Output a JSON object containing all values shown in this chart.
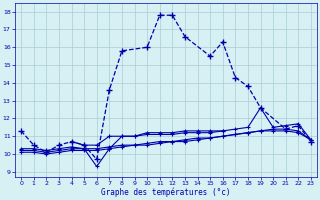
{
  "title": "Graphe des températures (°c)",
  "bg_color": "#d6f0f4",
  "grid_color": "#a8cdd4",
  "line_color": "#0000aa",
  "xlim_min": -0.5,
  "xlim_max": 23.5,
  "ylim_min": 8.7,
  "ylim_max": 18.5,
  "xticks": [
    0,
    1,
    2,
    3,
    4,
    5,
    6,
    7,
    8,
    9,
    10,
    11,
    12,
    13,
    14,
    15,
    16,
    17,
    18,
    19,
    20,
    21,
    22,
    23
  ],
  "yticks": [
    9,
    10,
    11,
    12,
    13,
    14,
    15,
    16,
    17,
    18
  ],
  "series1_x": [
    0,
    1,
    2,
    3,
    4,
    5,
    6,
    7,
    8,
    10,
    11,
    12,
    13,
    15,
    16,
    17,
    18,
    19,
    21,
    22,
    23
  ],
  "series1_y": [
    11.3,
    10.5,
    10.1,
    10.5,
    10.7,
    10.5,
    9.7,
    13.6,
    15.8,
    16.0,
    17.8,
    17.8,
    16.6,
    15.5,
    16.3,
    14.3,
    13.8,
    12.6,
    11.4,
    11.6,
    10.7
  ],
  "series1_dashed": true,
  "series2_x": [
    0,
    1,
    2,
    3,
    4,
    5,
    6,
    7,
    8,
    9,
    10,
    11,
    12,
    13,
    14,
    15,
    16,
    17,
    18,
    19,
    20,
    21,
    22,
    23
  ],
  "series2_y": [
    10.1,
    10.1,
    10.0,
    10.1,
    10.2,
    10.2,
    10.2,
    10.3,
    10.4,
    10.5,
    10.5,
    10.6,
    10.7,
    10.7,
    10.8,
    10.9,
    11.0,
    11.1,
    11.2,
    11.3,
    11.4,
    11.4,
    11.3,
    10.8
  ],
  "series3_x": [
    0,
    1,
    2,
    3,
    4,
    5,
    6,
    7,
    8,
    9,
    10,
    11,
    12,
    13,
    14,
    15,
    16,
    17,
    18,
    19,
    20,
    21,
    22,
    23
  ],
  "series3_y": [
    10.2,
    10.2,
    10.1,
    10.2,
    10.3,
    10.3,
    10.3,
    10.4,
    10.5,
    10.5,
    10.6,
    10.7,
    10.7,
    10.8,
    10.9,
    10.9,
    11.0,
    11.1,
    11.2,
    11.3,
    11.3,
    11.3,
    11.2,
    10.8
  ],
  "series4_x": [
    0,
    1,
    2,
    3,
    4,
    5,
    6,
    7,
    8,
    9,
    10,
    11,
    12,
    13,
    14,
    15,
    16,
    17,
    18,
    19,
    20,
    21,
    22,
    23
  ],
  "series4_y": [
    10.3,
    10.3,
    10.2,
    10.3,
    10.4,
    10.3,
    9.3,
    10.3,
    11.0,
    11.0,
    11.1,
    11.1,
    11.1,
    11.2,
    11.2,
    11.2,
    11.3,
    11.4,
    11.5,
    12.6,
    11.5,
    11.6,
    11.7,
    10.8
  ],
  "series5_x": [
    4,
    5,
    6,
    7,
    8,
    9,
    10,
    11,
    12,
    13,
    14,
    15,
    16
  ],
  "series5_y": [
    10.7,
    10.5,
    10.5,
    11.0,
    11.0,
    11.0,
    11.2,
    11.2,
    11.2,
    11.3,
    11.3,
    11.3,
    11.3
  ]
}
